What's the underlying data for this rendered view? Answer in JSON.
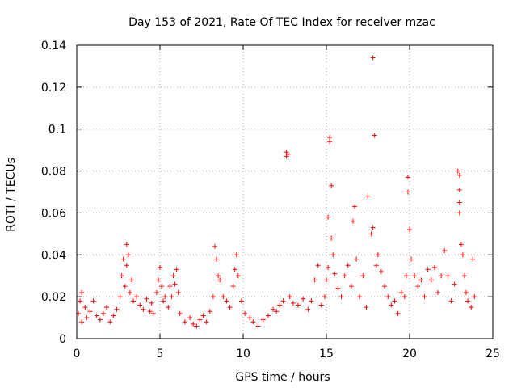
{
  "chart_data": {
    "type": "scatter",
    "title": "Day 153 of 2021, Rate Of TEC Index for receiver mzac",
    "xlabel": "GPS time / hours",
    "ylabel": "ROTI / TECUs",
    "xlim": [
      0,
      25
    ],
    "ylim": [
      0,
      0.14
    ],
    "xticks": [
      0,
      5,
      10,
      15,
      20,
      25
    ],
    "xtick_labels": [
      "0",
      "5",
      "10",
      "15",
      "20",
      "25"
    ],
    "yticks": [
      0,
      0.02,
      0.04,
      0.06,
      0.08,
      0.1,
      0.12,
      0.14
    ],
    "ytick_labels": [
      "0",
      "0.02",
      "0.04",
      "0.06",
      "0.08",
      "0.1",
      "0.12",
      "0.14"
    ],
    "grid": true,
    "marker": "+",
    "color": "#ff0000",
    "series": [
      {
        "name": "ROTI",
        "points": [
          [
            0.1,
            0.012
          ],
          [
            0.2,
            0.018
          ],
          [
            0.3,
            0.008
          ],
          [
            0.3,
            0.022
          ],
          [
            0.5,
            0.015
          ],
          [
            0.6,
            0.01
          ],
          [
            0.8,
            0.013
          ],
          [
            1.0,
            0.018
          ],
          [
            1.2,
            0.011
          ],
          [
            1.4,
            0.009
          ],
          [
            1.6,
            0.012
          ],
          [
            1.8,
            0.015
          ],
          [
            2.0,
            0.008
          ],
          [
            2.2,
            0.011
          ],
          [
            2.4,
            0.014
          ],
          [
            2.6,
            0.02
          ],
          [
            2.7,
            0.03
          ],
          [
            2.8,
            0.038
          ],
          [
            2.9,
            0.025
          ],
          [
            3.0,
            0.045
          ],
          [
            3.0,
            0.035
          ],
          [
            3.1,
            0.04
          ],
          [
            3.2,
            0.022
          ],
          [
            3.3,
            0.028
          ],
          [
            3.4,
            0.018
          ],
          [
            3.6,
            0.02
          ],
          [
            3.8,
            0.016
          ],
          [
            4.0,
            0.014
          ],
          [
            4.2,
            0.019
          ],
          [
            4.4,
            0.013
          ],
          [
            4.5,
            0.017
          ],
          [
            4.6,
            0.012
          ],
          [
            4.8,
            0.022
          ],
          [
            4.9,
            0.028
          ],
          [
            5.0,
            0.034
          ],
          [
            5.1,
            0.025
          ],
          [
            5.2,
            0.018
          ],
          [
            5.3,
            0.02
          ],
          [
            5.5,
            0.015
          ],
          [
            5.6,
            0.025
          ],
          [
            5.7,
            0.02
          ],
          [
            5.8,
            0.03
          ],
          [
            5.9,
            0.026
          ],
          [
            6.0,
            0.033
          ],
          [
            6.1,
            0.022
          ],
          [
            6.2,
            0.012
          ],
          [
            6.5,
            0.008
          ],
          [
            6.8,
            0.01
          ],
          [
            7.0,
            0.007
          ],
          [
            7.2,
            0.006
          ],
          [
            7.4,
            0.009
          ],
          [
            7.6,
            0.011
          ],
          [
            7.8,
            0.008
          ],
          [
            8.0,
            0.013
          ],
          [
            8.2,
            0.02
          ],
          [
            8.3,
            0.044
          ],
          [
            8.4,
            0.038
          ],
          [
            8.5,
            0.03
          ],
          [
            8.6,
            0.028
          ],
          [
            8.8,
            0.02
          ],
          [
            9.0,
            0.018
          ],
          [
            9.2,
            0.015
          ],
          [
            9.4,
            0.025
          ],
          [
            9.5,
            0.033
          ],
          [
            9.6,
            0.04
          ],
          [
            9.7,
            0.03
          ],
          [
            9.9,
            0.018
          ],
          [
            10.1,
            0.012
          ],
          [
            10.4,
            0.01
          ],
          [
            10.6,
            0.008
          ],
          [
            10.9,
            0.006
          ],
          [
            11.2,
            0.009
          ],
          [
            11.5,
            0.011
          ],
          [
            11.8,
            0.014
          ],
          [
            12.0,
            0.013
          ],
          [
            12.2,
            0.016
          ],
          [
            12.4,
            0.018
          ],
          [
            12.6,
            0.087
          ],
          [
            12.6,
            0.089
          ],
          [
            12.7,
            0.088
          ],
          [
            12.8,
            0.02
          ],
          [
            13.0,
            0.017
          ],
          [
            13.3,
            0.016
          ],
          [
            13.6,
            0.019
          ],
          [
            13.9,
            0.014
          ],
          [
            14.1,
            0.018
          ],
          [
            14.3,
            0.028
          ],
          [
            14.5,
            0.035
          ],
          [
            14.7,
            0.016
          ],
          [
            14.9,
            0.02
          ],
          [
            15.0,
            0.028
          ],
          [
            15.1,
            0.034
          ],
          [
            15.1,
            0.058
          ],
          [
            15.2,
            0.096
          ],
          [
            15.2,
            0.094
          ],
          [
            15.3,
            0.073
          ],
          [
            15.3,
            0.048
          ],
          [
            15.4,
            0.04
          ],
          [
            15.5,
            0.031
          ],
          [
            15.7,
            0.024
          ],
          [
            15.9,
            0.02
          ],
          [
            16.1,
            0.03
          ],
          [
            16.3,
            0.035
          ],
          [
            16.5,
            0.025
          ],
          [
            16.6,
            0.056
          ],
          [
            16.7,
            0.063
          ],
          [
            16.8,
            0.038
          ],
          [
            17.0,
            0.02
          ],
          [
            17.2,
            0.03
          ],
          [
            17.4,
            0.015
          ],
          [
            17.5,
            0.068
          ],
          [
            17.7,
            0.05
          ],
          [
            17.8,
            0.053
          ],
          [
            17.8,
            0.134
          ],
          [
            17.9,
            0.097
          ],
          [
            18.0,
            0.035
          ],
          [
            18.1,
            0.04
          ],
          [
            18.3,
            0.032
          ],
          [
            18.5,
            0.025
          ],
          [
            18.7,
            0.02
          ],
          [
            18.9,
            0.016
          ],
          [
            19.1,
            0.018
          ],
          [
            19.3,
            0.012
          ],
          [
            19.5,
            0.022
          ],
          [
            19.7,
            0.02
          ],
          [
            19.8,
            0.03
          ],
          [
            19.9,
            0.077
          ],
          [
            19.9,
            0.07
          ],
          [
            20.0,
            0.052
          ],
          [
            20.1,
            0.038
          ],
          [
            20.3,
            0.03
          ],
          [
            20.5,
            0.025
          ],
          [
            20.7,
            0.028
          ],
          [
            20.9,
            0.02
          ],
          [
            21.1,
            0.033
          ],
          [
            21.3,
            0.028
          ],
          [
            21.5,
            0.034
          ],
          [
            21.7,
            0.022
          ],
          [
            21.9,
            0.03
          ],
          [
            22.1,
            0.042
          ],
          [
            22.3,
            0.03
          ],
          [
            22.5,
            0.018
          ],
          [
            22.7,
            0.026
          ],
          [
            22.9,
            0.08
          ],
          [
            23.0,
            0.078
          ],
          [
            23.0,
            0.071
          ],
          [
            23.0,
            0.065
          ],
          [
            23.0,
            0.06
          ],
          [
            23.1,
            0.045
          ],
          [
            23.2,
            0.04
          ],
          [
            23.3,
            0.03
          ],
          [
            23.4,
            0.022
          ],
          [
            23.5,
            0.018
          ],
          [
            23.7,
            0.015
          ],
          [
            23.8,
            0.038
          ],
          [
            23.9,
            0.02
          ]
        ]
      }
    ]
  }
}
